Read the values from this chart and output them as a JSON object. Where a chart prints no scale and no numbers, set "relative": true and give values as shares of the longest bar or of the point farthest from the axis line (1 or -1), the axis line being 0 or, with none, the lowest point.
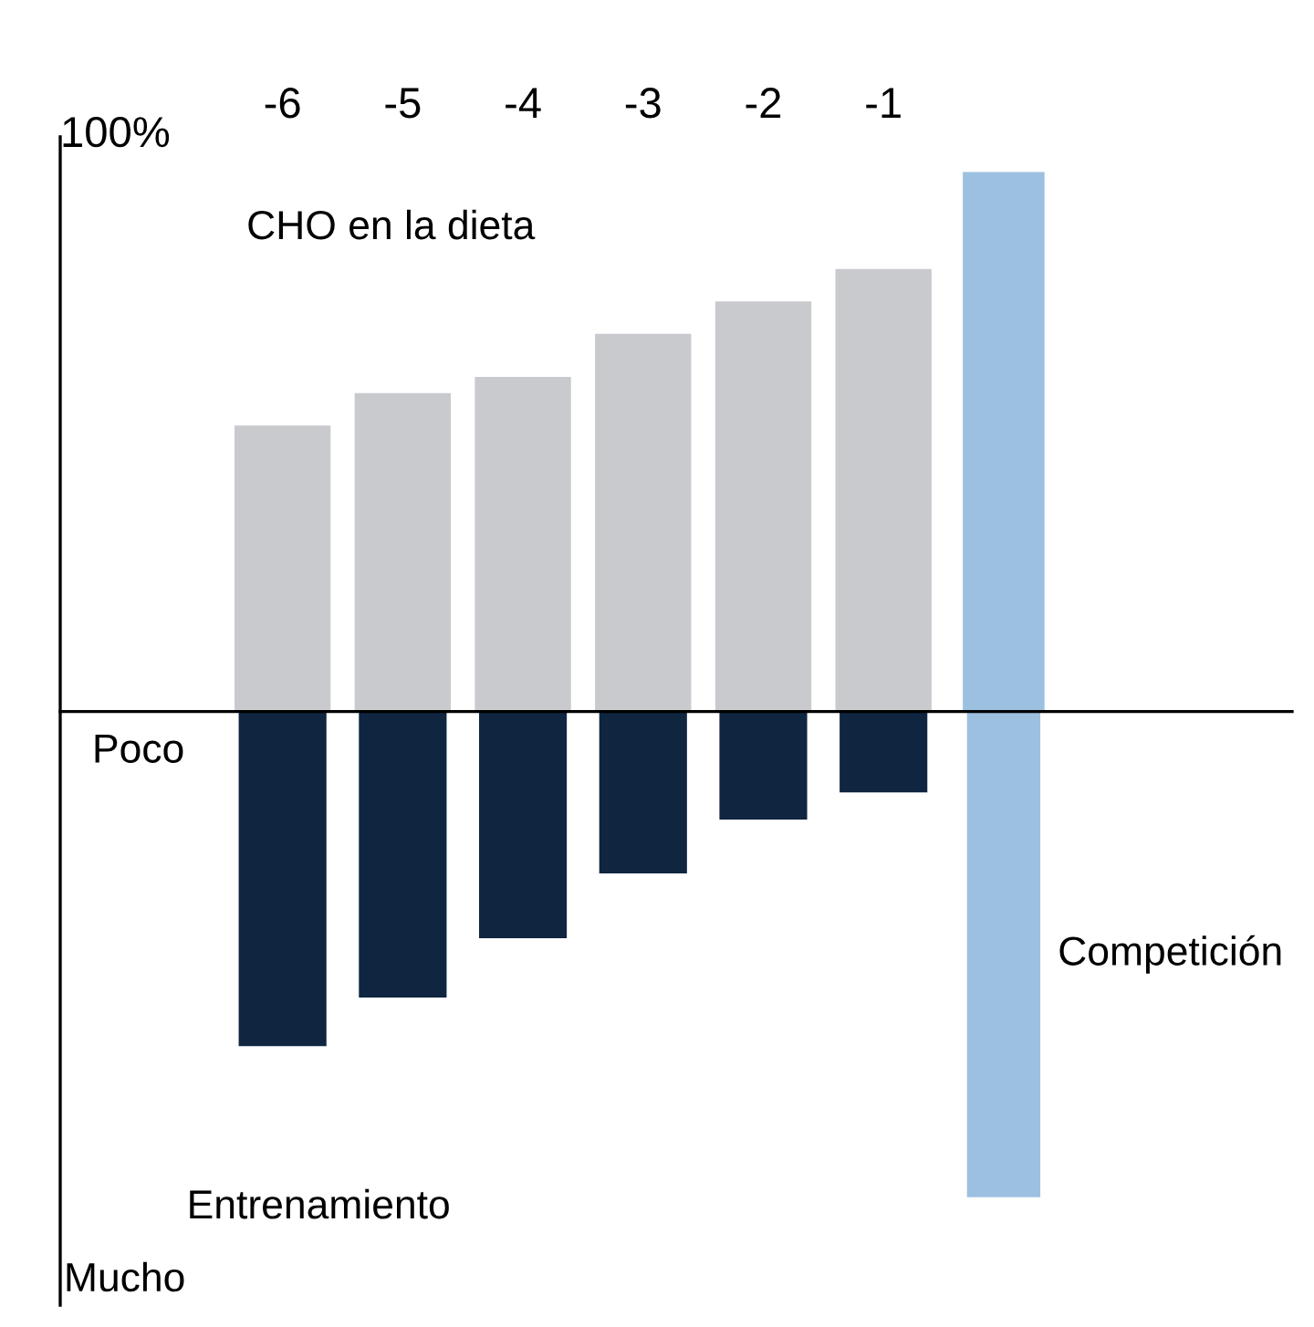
{
  "chart_data": {
    "type": "bar",
    "relative": true,
    "categories": [
      "-6",
      "-5",
      "-4",
      "-3",
      "-2",
      "-1",
      null
    ],
    "annotations": [
      "100%",
      "CHO en la dieta",
      "Poco",
      "Competición",
      "Entrenamiento",
      "Mucho"
    ],
    "series": [
      {
        "color": "#c8cacd",
        "values": [
          0.53,
          0.59,
          0.62,
          0.7,
          0.76,
          0.82,
          null
        ]
      },
      {
        "color": "#0f2540",
        "values": [
          -0.62,
          -0.53,
          -0.42,
          -0.3,
          -0.2,
          -0.15,
          null
        ]
      },
      {
        "color": "#9cc0e0",
        "values": [
          null,
          null,
          null,
          null,
          null,
          null,
          1.0
        ]
      },
      {
        "color": "#9cc0e0",
        "values": [
          null,
          null,
          null,
          null,
          null,
          null,
          -0.9
        ]
      }
    ],
    "legend": false
  }
}
